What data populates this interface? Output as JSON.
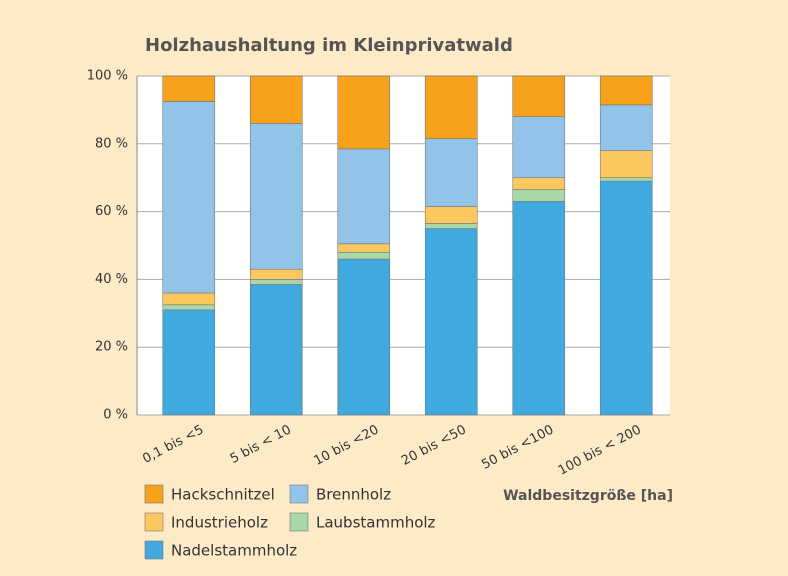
{
  "chart_data": {
    "type": "stacked_bar",
    "title": "Holzhaushaltung im Kleinprivatwald",
    "x_label": "Waldbesitzgröße [ha]",
    "categories": [
      "0,1 bis <5",
      "5 bis < 10",
      "10 bis <20",
      "20 bis <50",
      "50 bis <100",
      "100 bis < 200"
    ],
    "series": [
      {
        "name": "Nadelstammholz",
        "color": "#3fa9e0",
        "values": [
          31,
          38.5,
          46,
          55,
          63,
          69
        ]
      },
      {
        "name": "Laubstammholz",
        "color": "#a8d8a8",
        "values": [
          1.5,
          1.5,
          2,
          1.5,
          3.5,
          1
        ]
      },
      {
        "name": "Industrieholz",
        "color": "#fcc75e",
        "values": [
          3.5,
          3,
          2.5,
          5,
          3.5,
          8
        ]
      },
      {
        "name": "Brennholz",
        "color": "#92c4ea",
        "values": [
          56.5,
          43,
          28,
          20,
          18,
          13.5
        ]
      },
      {
        "name": "Hackschnitzel",
        "color": "#f7a21b",
        "values": [
          7.5,
          14,
          21.5,
          18.5,
          12,
          8.5
        ]
      }
    ],
    "ylim": [
      0,
      100
    ],
    "yticks": [
      {
        "value": 0,
        "label": "0 %"
      },
      {
        "value": 20,
        "label": "20 %"
      },
      {
        "value": 40,
        "label": "40 %"
      },
      {
        "value": 60,
        "label": "60 %"
      },
      {
        "value": 80,
        "label": "80 %"
      },
      {
        "value": 100,
        "label": "100 %"
      }
    ],
    "grid": true
  }
}
